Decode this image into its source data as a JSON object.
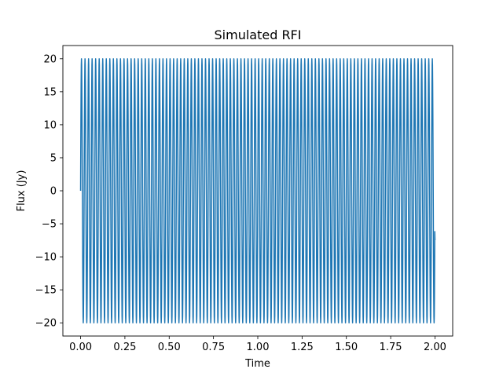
{
  "chart_data": {
    "type": "line",
    "title": "Simulated RFI",
    "xlabel": "Time",
    "ylabel": "Flux (Jy)",
    "xlim": [
      -0.1,
      2.1
    ],
    "ylim": [
      -22,
      22
    ],
    "xticks": [
      0.0,
      0.25,
      0.5,
      0.75,
      1.0,
      1.25,
      1.5,
      1.75,
      2.0
    ],
    "xtick_labels": [
      "0.00",
      "0.25",
      "0.50",
      "0.75",
      "1.00",
      "1.25",
      "1.50",
      "1.75",
      "2.00"
    ],
    "yticks": [
      -20,
      -15,
      -10,
      -5,
      0,
      5,
      10,
      15,
      20
    ],
    "ytick_labels": [
      "−20",
      "−15",
      "−10",
      "−5",
      "0",
      "5",
      "10",
      "15",
      "20"
    ],
    "grid": false,
    "line_color": "#1f77b4",
    "series": [
      {
        "signal": "sine",
        "amplitude": 20,
        "frequency": 50,
        "x_start": 0.0,
        "x_end": 2.0,
        "y_start": 0,
        "y_end": -7.5
      }
    ]
  }
}
